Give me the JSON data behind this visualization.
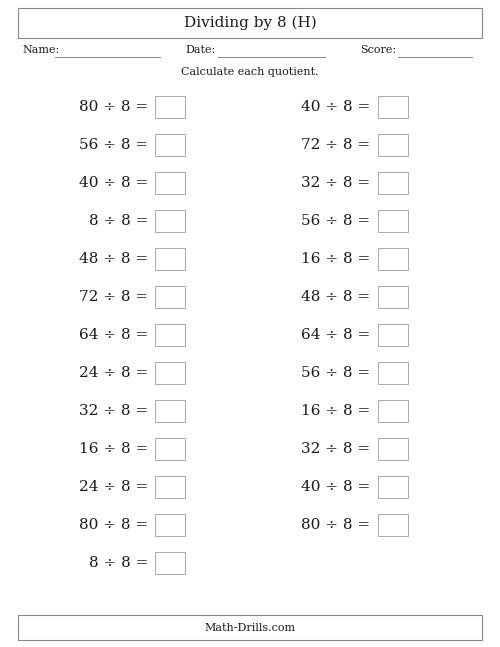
{
  "title": "Dividing by 8 (H)",
  "name_label": "Name:",
  "date_label": "Date:",
  "score_label": "Score:",
  "instruction": "Calculate each quotient.",
  "footer": "Math-Drills.com",
  "left_column": [
    "80 ÷ 8 =",
    "56 ÷ 8 =",
    "40 ÷ 8 =",
    "8 ÷ 8 =",
    "48 ÷ 8 =",
    "72 ÷ 8 =",
    "64 ÷ 8 =",
    "24 ÷ 8 =",
    "32 ÷ 8 =",
    "16 ÷ 8 =",
    "24 ÷ 8 =",
    "80 ÷ 8 =",
    "8 ÷ 8 ="
  ],
  "right_column": [
    "40 ÷ 8 =",
    "72 ÷ 8 =",
    "32 ÷ 8 =",
    "56 ÷ 8 =",
    "16 ÷ 8 =",
    "48 ÷ 8 =",
    "64 ÷ 8 =",
    "56 ÷ 8 =",
    "16 ÷ 8 =",
    "32 ÷ 8 =",
    "40 ÷ 8 =",
    "80 ÷ 8 ="
  ],
  "bg_color": "#ffffff",
  "text_color": "#1a1a1a",
  "box_edge_color": "#aaaaaa",
  "border_color": "#888888",
  "font_size_title": 11,
  "font_size_header": 8,
  "font_size_instruction": 8,
  "font_size_problem": 11,
  "font_size_footer": 8
}
